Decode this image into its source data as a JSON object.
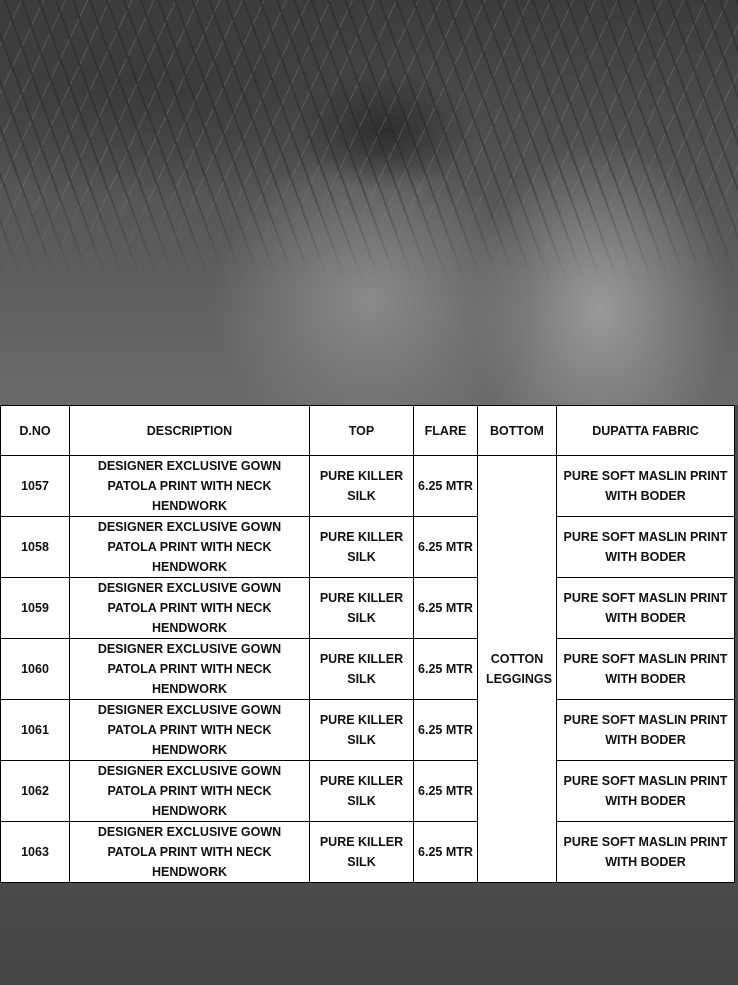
{
  "table": {
    "headers": [
      "D.NO",
      "DESCRIPTION",
      "TOP",
      "FLARE",
      "BOTTOM",
      "DUPATTA FABRIC"
    ],
    "bottom_shared": "COTTON LEGGINGS",
    "rows": [
      {
        "dno": "1057",
        "description": "DESIGNER EXCLUSIVE GOWN PATOLA PRINT WITH NECK HENDWORK",
        "top": "PURE KILLER SILK",
        "flare": "6.25 MTR",
        "dupatta": "PURE SOFT  MASLIN PRINT WITH BODER"
      },
      {
        "dno": "1058",
        "description": "DESIGNER EXCLUSIVE GOWN PATOLA PRINT WITH NECK HENDWORK",
        "top": "PURE KILLER SILK",
        "flare": "6.25 MTR",
        "dupatta": "PURE SOFT  MASLIN PRINT WITH BODER"
      },
      {
        "dno": "1059",
        "description": "DESIGNER EXCLUSIVE GOWN PATOLA PRINT WITH NECK HENDWORK",
        "top": "PURE KILLER SILK",
        "flare": "6.25 MTR",
        "dupatta": "PURE SOFT  MASLIN PRINT WITH BODER"
      },
      {
        "dno": "1060",
        "description": "DESIGNER EXCLUSIVE GOWN PATOLA PRINT WITH NECK HENDWORK",
        "top": "PURE KILLER SILK",
        "flare": "6.25 MTR",
        "dupatta": "PURE SOFT  MASLIN PRINT WITH BODER"
      },
      {
        "dno": "1061",
        "description": "DESIGNER EXCLUSIVE GOWN PATOLA PRINT WITH NECK HENDWORK",
        "top": "PURE KILLER SILK",
        "flare": "6.25 MTR",
        "dupatta": "PURE SOFT  MASLIN PRINT WITH BODER"
      },
      {
        "dno": "1062",
        "description": "DESIGNER EXCLUSIVE GOWN PATOLA PRINT WITH NECK HENDWORK",
        "top": "PURE KILLER SILK",
        "flare": "6.25 MTR",
        "dupatta": "PURE SOFT  MASLIN PRINT WITH BODER"
      },
      {
        "dno": "1063",
        "description": "DESIGNER EXCLUSIVE GOWN PATOLA PRINT WITH NECK HENDWORK",
        "top": "PURE KILLER SILK",
        "flare": "6.25 MTR",
        "dupatta": "PURE SOFT  MASLIN PRINT WITH BODER"
      }
    ]
  }
}
